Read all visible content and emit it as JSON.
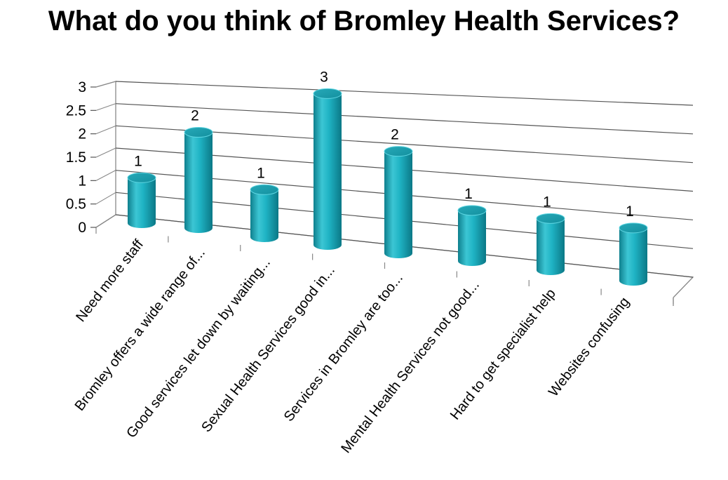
{
  "chart_data": {
    "type": "bar",
    "title": "What do you think of Bromley Health Services?",
    "categories": [
      "Need more staff",
      "Bromley offers a wide range of...",
      "Good services let down by waiting...",
      "Sexual Health Services good in...",
      "Services in Bromley are too...",
      "Mental Health Services not good...",
      "Hard to get specialist help",
      "Websites confusing"
    ],
    "values": [
      1,
      2,
      1,
      3,
      2,
      1,
      1,
      1
    ],
    "y_ticks": [
      "0",
      "0.5",
      "1",
      "1.5",
      "2",
      "2.5",
      "3"
    ],
    "ylim": [
      0,
      3
    ],
    "grid": true,
    "bar_color": "#1fb3c4",
    "data_labels": true
  }
}
